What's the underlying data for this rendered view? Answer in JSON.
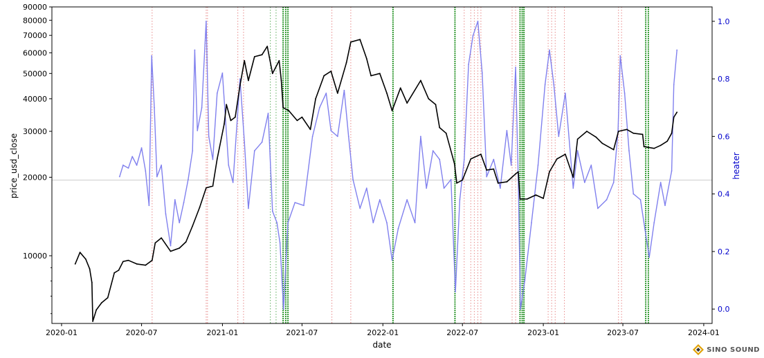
{
  "chart_data": {
    "type": "line",
    "xlabel": "date",
    "ylabel_left": "price_usd_close",
    "ylabel_right": "heater",
    "left_scale": "log",
    "ylim_left": [
      5500,
      90000
    ],
    "ylim_right": [
      -0.05,
      1.05
    ],
    "xlim": [
      "2019-12-10",
      "2024-01-20"
    ],
    "x_ticks": [
      "2020-01",
      "2020-07",
      "2021-01",
      "2021-07",
      "2022-01",
      "2022-07",
      "2023-01",
      "2023-07",
      "2024-01"
    ],
    "y_ticks_left": [
      "10000",
      "20000",
      "30000",
      "40000",
      "50000",
      "60000",
      "70000",
      "80000",
      "90000"
    ],
    "y_ticks_left_values": [
      10000,
      20000,
      30000,
      40000,
      50000,
      60000,
      70000,
      80000,
      90000
    ],
    "y_ticks_right": [
      "0.0",
      "0.2",
      "0.4",
      "0.6",
      "0.8",
      "1.0"
    ],
    "y_ticks_right_values": [
      0.0,
      0.2,
      0.4,
      0.6,
      0.8,
      1.0
    ],
    "horizontal_line": 19500,
    "series": [
      {
        "name": "price_usd_close",
        "axis": "left",
        "color": "#000000",
        "points": [
          [
            "2020-02-01",
            9300
          ],
          [
            "2020-02-12",
            10300
          ],
          [
            "2020-02-25",
            9700
          ],
          [
            "2020-03-05",
            8900
          ],
          [
            "2020-03-10",
            7900
          ],
          [
            "2020-03-12",
            5600
          ],
          [
            "2020-03-20",
            6200
          ],
          [
            "2020-04-01",
            6600
          ],
          [
            "2020-04-15",
            6900
          ],
          [
            "2020-04-30",
            8600
          ],
          [
            "2020-05-10",
            8800
          ],
          [
            "2020-05-20",
            9500
          ],
          [
            "2020-06-01",
            9600
          ],
          [
            "2020-06-20",
            9300
          ],
          [
            "2020-07-10",
            9200
          ],
          [
            "2020-07-25",
            9600
          ],
          [
            "2020-08-01",
            11200
          ],
          [
            "2020-08-15",
            11700
          ],
          [
            "2020-09-05",
            10400
          ],
          [
            "2020-09-25",
            10700
          ],
          [
            "2020-10-10",
            11300
          ],
          [
            "2020-10-25",
            13000
          ],
          [
            "2020-11-10",
            15300
          ],
          [
            "2020-11-25",
            18200
          ],
          [
            "2020-12-10",
            18500
          ],
          [
            "2020-12-20",
            23500
          ],
          [
            "2021-01-05",
            32000
          ],
          [
            "2021-01-10",
            38000
          ],
          [
            "2021-01-20",
            33000
          ],
          [
            "2021-01-30",
            34000
          ],
          [
            "2021-02-10",
            45000
          ],
          [
            "2021-02-20",
            56000
          ],
          [
            "2021-03-01",
            47000
          ],
          [
            "2021-03-15",
            58000
          ],
          [
            "2021-04-01",
            59000
          ],
          [
            "2021-04-13",
            63500
          ],
          [
            "2021-04-25",
            50000
          ],
          [
            "2021-05-10",
            56000
          ],
          [
            "2021-05-15",
            47000
          ],
          [
            "2021-05-19",
            37000
          ],
          [
            "2021-06-01",
            36000
          ],
          [
            "2021-06-20",
            33000
          ],
          [
            "2021-07-01",
            34000
          ],
          [
            "2021-07-20",
            30500
          ],
          [
            "2021-08-01",
            40000
          ],
          [
            "2021-08-20",
            49000
          ],
          [
            "2021-09-05",
            51000
          ],
          [
            "2021-09-20",
            42000
          ],
          [
            "2021-10-10",
            55000
          ],
          [
            "2021-10-20",
            66000
          ],
          [
            "2021-11-10",
            67500
          ],
          [
            "2021-11-25",
            57000
          ],
          [
            "2021-12-05",
            49000
          ],
          [
            "2021-12-25",
            50000
          ],
          [
            "2022-01-10",
            42000
          ],
          [
            "2022-01-22",
            36000
          ],
          [
            "2022-02-10",
            44000
          ],
          [
            "2022-02-25",
            38500
          ],
          [
            "2022-03-28",
            47000
          ],
          [
            "2022-04-15",
            40000
          ],
          [
            "2022-05-01",
            38000
          ],
          [
            "2022-05-10",
            31000
          ],
          [
            "2022-05-25",
            29500
          ],
          [
            "2022-06-13",
            22500
          ],
          [
            "2022-06-18",
            19000
          ],
          [
            "2022-07-01",
            19500
          ],
          [
            "2022-07-20",
            23500
          ],
          [
            "2022-08-12",
            24500
          ],
          [
            "2022-08-25",
            21300
          ],
          [
            "2022-09-10",
            21500
          ],
          [
            "2022-09-20",
            19000
          ],
          [
            "2022-10-10",
            19200
          ],
          [
            "2022-10-30",
            20600
          ],
          [
            "2022-11-05",
            21000
          ],
          [
            "2022-11-09",
            16500
          ],
          [
            "2022-11-25",
            16500
          ],
          [
            "2022-12-15",
            17100
          ],
          [
            "2023-01-01",
            16600
          ],
          [
            "2023-01-15",
            21000
          ],
          [
            "2023-02-01",
            23500
          ],
          [
            "2023-02-20",
            24500
          ],
          [
            "2023-03-10",
            20000
          ],
          [
            "2023-03-20",
            28000
          ],
          [
            "2023-04-10",
            30000
          ],
          [
            "2023-05-01",
            28500
          ],
          [
            "2023-05-15",
            27000
          ],
          [
            "2023-06-10",
            25500
          ],
          [
            "2023-06-21",
            30000
          ],
          [
            "2023-07-10",
            30500
          ],
          [
            "2023-07-25",
            29500
          ],
          [
            "2023-08-15",
            29200
          ],
          [
            "2023-08-18",
            26200
          ],
          [
            "2023-09-10",
            25800
          ],
          [
            "2023-09-25",
            26500
          ],
          [
            "2023-10-10",
            27500
          ],
          [
            "2023-10-20",
            29500
          ],
          [
            "2023-10-25",
            34000
          ],
          [
            "2023-11-01",
            35500
          ]
        ]
      },
      {
        "name": "heater",
        "axis": "right",
        "color": "#8080ee",
        "points": [
          [
            "2020-05-12",
            0.46
          ],
          [
            "2020-05-20",
            0.5
          ],
          [
            "2020-06-01",
            0.49
          ],
          [
            "2020-06-10",
            0.53
          ],
          [
            "2020-06-20",
            0.5
          ],
          [
            "2020-07-01",
            0.56
          ],
          [
            "2020-07-10",
            0.48
          ],
          [
            "2020-07-18",
            0.36
          ],
          [
            "2020-07-24",
            0.88
          ],
          [
            "2020-07-30",
            0.7
          ],
          [
            "2020-08-05",
            0.46
          ],
          [
            "2020-08-15",
            0.5
          ],
          [
            "2020-08-25",
            0.33
          ],
          [
            "2020-09-05",
            0.22
          ],
          [
            "2020-09-15",
            0.38
          ],
          [
            "2020-09-25",
            0.3
          ],
          [
            "2020-10-05",
            0.37
          ],
          [
            "2020-10-15",
            0.45
          ],
          [
            "2020-10-25",
            0.55
          ],
          [
            "2020-10-30",
            0.9
          ],
          [
            "2020-11-05",
            0.62
          ],
          [
            "2020-11-15",
            0.7
          ],
          [
            "2020-11-25",
            1.0
          ],
          [
            "2020-12-01",
            0.6
          ],
          [
            "2020-12-10",
            0.52
          ],
          [
            "2020-12-20",
            0.75
          ],
          [
            "2021-01-01",
            0.82
          ],
          [
            "2021-01-15",
            0.5
          ],
          [
            "2021-01-25",
            0.44
          ],
          [
            "2021-02-10",
            0.8
          ],
          [
            "2021-02-20",
            0.58
          ],
          [
            "2021-03-01",
            0.35
          ],
          [
            "2021-03-15",
            0.55
          ],
          [
            "2021-04-01",
            0.58
          ],
          [
            "2021-04-15",
            0.68
          ],
          [
            "2021-04-25",
            0.34
          ],
          [
            "2021-05-05",
            0.3
          ],
          [
            "2021-05-12",
            0.23
          ],
          [
            "2021-05-20",
            0.0
          ],
          [
            "2021-05-30",
            0.3
          ],
          [
            "2021-06-15",
            0.37
          ],
          [
            "2021-07-05",
            0.36
          ],
          [
            "2021-07-25",
            0.6
          ],
          [
            "2021-08-10",
            0.7
          ],
          [
            "2021-08-25",
            0.75
          ],
          [
            "2021-09-05",
            0.62
          ],
          [
            "2021-09-20",
            0.6
          ],
          [
            "2021-10-05",
            0.76
          ],
          [
            "2021-10-15",
            0.6
          ],
          [
            "2021-10-25",
            0.45
          ],
          [
            "2021-11-10",
            0.35
          ],
          [
            "2021-11-25",
            0.42
          ],
          [
            "2021-12-10",
            0.3
          ],
          [
            "2021-12-25",
            0.38
          ],
          [
            "2022-01-10",
            0.3
          ],
          [
            "2022-01-22",
            0.17
          ],
          [
            "2022-02-05",
            0.28
          ],
          [
            "2022-02-25",
            0.38
          ],
          [
            "2022-03-15",
            0.3
          ],
          [
            "2022-03-28",
            0.6
          ],
          [
            "2022-04-10",
            0.42
          ],
          [
            "2022-04-25",
            0.55
          ],
          [
            "2022-05-10",
            0.52
          ],
          [
            "2022-05-20",
            0.42
          ],
          [
            "2022-06-05",
            0.45
          ],
          [
            "2022-06-15",
            0.06
          ],
          [
            "2022-06-25",
            0.38
          ],
          [
            "2022-07-05",
            0.52
          ],
          [
            "2022-07-15",
            0.85
          ],
          [
            "2022-07-25",
            0.95
          ],
          [
            "2022-08-05",
            1.0
          ],
          [
            "2022-08-15",
            0.82
          ],
          [
            "2022-08-25",
            0.46
          ],
          [
            "2022-09-10",
            0.52
          ],
          [
            "2022-09-25",
            0.42
          ],
          [
            "2022-10-10",
            0.62
          ],
          [
            "2022-10-20",
            0.5
          ],
          [
            "2022-10-30",
            0.84
          ],
          [
            "2022-11-05",
            0.45
          ],
          [
            "2022-11-10",
            0.0
          ],
          [
            "2022-11-20",
            0.1
          ],
          [
            "2022-12-05",
            0.3
          ],
          [
            "2022-12-20",
            0.5
          ],
          [
            "2023-01-05",
            0.78
          ],
          [
            "2023-01-15",
            0.9
          ],
          [
            "2023-01-25",
            0.78
          ],
          [
            "2023-02-05",
            0.6
          ],
          [
            "2023-02-20",
            0.75
          ],
          [
            "2023-03-10",
            0.42
          ],
          [
            "2023-03-20",
            0.55
          ],
          [
            "2023-04-05",
            0.44
          ],
          [
            "2023-04-20",
            0.5
          ],
          [
            "2023-05-05",
            0.35
          ],
          [
            "2023-05-25",
            0.38
          ],
          [
            "2023-06-10",
            0.44
          ],
          [
            "2023-06-20",
            0.62
          ],
          [
            "2023-06-25",
            0.88
          ],
          [
            "2023-07-05",
            0.75
          ],
          [
            "2023-07-15",
            0.55
          ],
          [
            "2023-07-25",
            0.4
          ],
          [
            "2023-08-10",
            0.38
          ],
          [
            "2023-08-20",
            0.28
          ],
          [
            "2023-08-30",
            0.18
          ],
          [
            "2023-09-10",
            0.3
          ],
          [
            "2023-09-25",
            0.44
          ],
          [
            "2023-10-05",
            0.36
          ],
          [
            "2023-10-20",
            0.48
          ],
          [
            "2023-10-25",
            0.78
          ],
          [
            "2023-11-01",
            0.9
          ]
        ]
      }
    ],
    "vertical_markers": [
      {
        "date": "2020-07-25",
        "color": "red",
        "style": "dotted"
      },
      {
        "date": "2020-11-25",
        "color": "red",
        "style": "dotted"
      },
      {
        "date": "2020-11-28",
        "color": "red",
        "style": "dotted"
      },
      {
        "date": "2021-02-05",
        "color": "red",
        "style": "dotted"
      },
      {
        "date": "2021-02-18",
        "color": "red",
        "style": "dotted"
      },
      {
        "date": "2021-04-20",
        "color": "green",
        "style": "dotted"
      },
      {
        "date": "2021-05-03",
        "color": "green",
        "style": "dotted"
      },
      {
        "date": "2021-05-19",
        "color": "green",
        "style": "dense"
      },
      {
        "date": "2021-05-25",
        "color": "green",
        "style": "dense"
      },
      {
        "date": "2021-05-30",
        "color": "green",
        "style": "dense"
      },
      {
        "date": "2021-09-07",
        "color": "red",
        "style": "dotted"
      },
      {
        "date": "2021-10-20",
        "color": "red",
        "style": "dotted"
      },
      {
        "date": "2022-01-24",
        "color": "green",
        "style": "dense"
      },
      {
        "date": "2022-06-14",
        "color": "green",
        "style": "dense"
      },
      {
        "date": "2022-07-05",
        "color": "red",
        "style": "dotted"
      },
      {
        "date": "2022-07-20",
        "color": "red",
        "style": "dotted"
      },
      {
        "date": "2022-07-28",
        "color": "red",
        "style": "dotted"
      },
      {
        "date": "2022-08-05",
        "color": "red",
        "style": "dotted"
      },
      {
        "date": "2022-08-12",
        "color": "red",
        "style": "dotted"
      },
      {
        "date": "2022-10-22",
        "color": "red",
        "style": "dotted"
      },
      {
        "date": "2022-10-30",
        "color": "red",
        "style": "dotted"
      },
      {
        "date": "2022-11-09",
        "color": "green",
        "style": "dense"
      },
      {
        "date": "2022-11-14",
        "color": "green",
        "style": "dense"
      },
      {
        "date": "2022-11-18",
        "color": "green",
        "style": "dense"
      },
      {
        "date": "2023-01-12",
        "color": "red",
        "style": "dotted"
      },
      {
        "date": "2023-01-20",
        "color": "red",
        "style": "dotted"
      },
      {
        "date": "2023-01-28",
        "color": "red",
        "style": "dotted"
      },
      {
        "date": "2023-02-18",
        "color": "red",
        "style": "dotted"
      },
      {
        "date": "2023-06-21",
        "color": "red",
        "style": "dotted"
      },
      {
        "date": "2023-06-28",
        "color": "red",
        "style": "dotted"
      },
      {
        "date": "2023-08-22",
        "color": "green",
        "style": "dense"
      },
      {
        "date": "2023-08-28",
        "color": "green",
        "style": "dense"
      }
    ]
  },
  "logo": {
    "text": "SINO SOUND"
  }
}
